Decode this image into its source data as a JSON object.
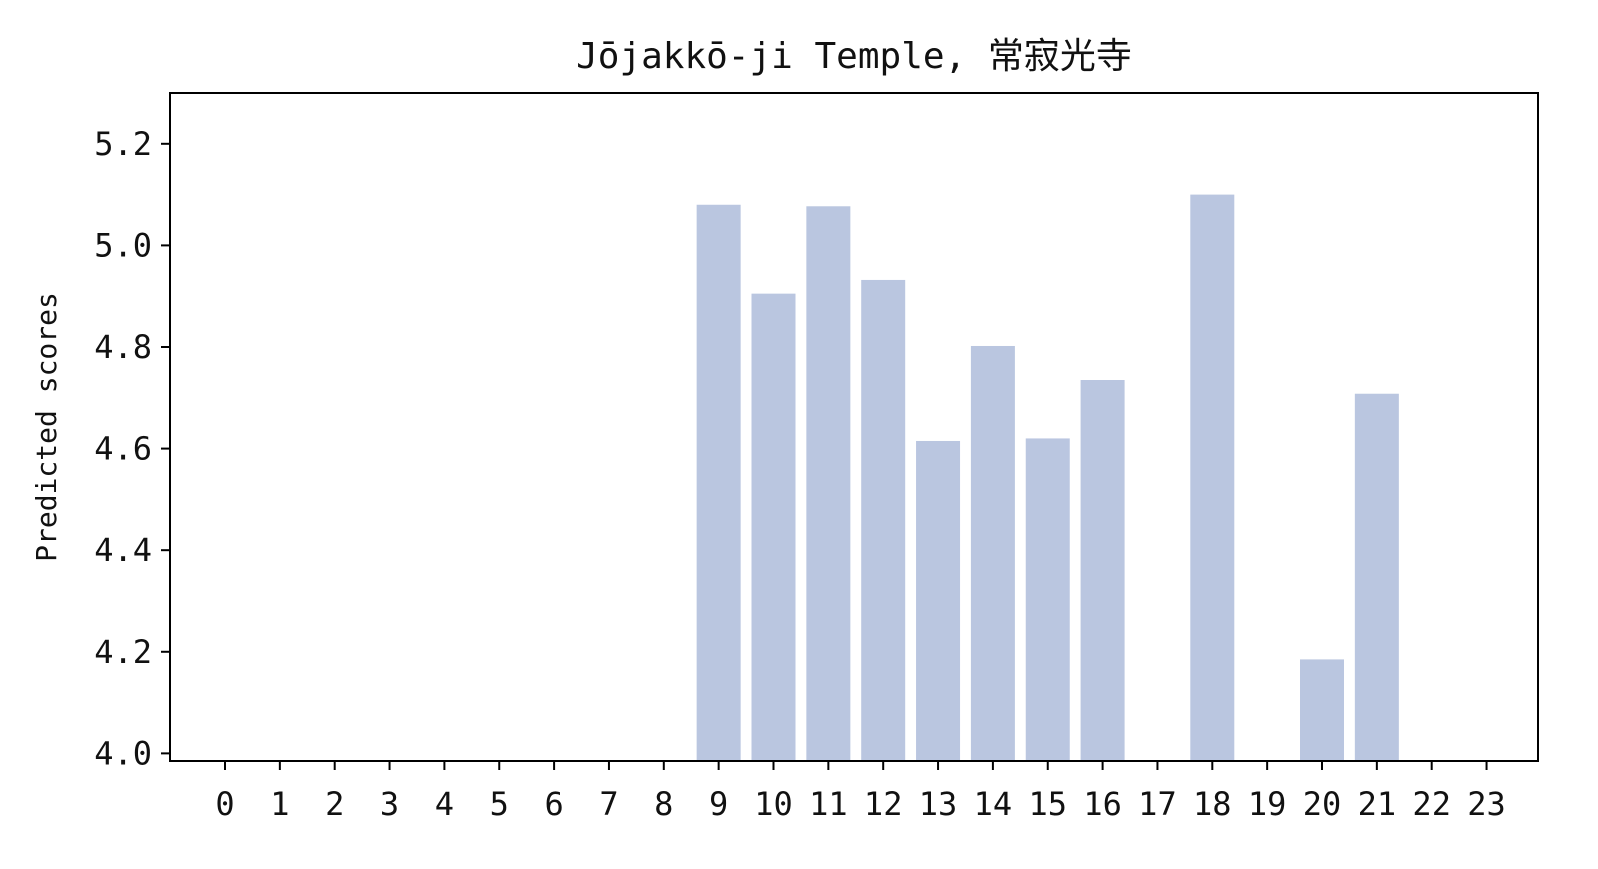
{
  "chart_data": {
    "type": "bar",
    "title": "Jōjakkō-ji Temple, 常寂光寺",
    "xlabel": "",
    "ylabel": "Predicted scores",
    "categories": [
      "0",
      "1",
      "2",
      "3",
      "4",
      "5",
      "6",
      "7",
      "8",
      "9",
      "10",
      "11",
      "12",
      "13",
      "14",
      "15",
      "16",
      "17",
      "18",
      "19",
      "20",
      "21",
      "22",
      "23"
    ],
    "values": [
      null,
      null,
      null,
      null,
      null,
      null,
      null,
      null,
      null,
      5.08,
      4.905,
      5.077,
      4.932,
      4.615,
      4.802,
      4.62,
      4.735,
      null,
      5.1,
      null,
      4.185,
      4.708,
      null,
      null
    ],
    "yticks": [
      "4.0",
      "4.2",
      "4.4",
      "4.6",
      "4.8",
      "5.0",
      "5.2"
    ],
    "ylim": [
      3.985,
      5.3
    ],
    "grid": false,
    "bar_color": "#bac6e0"
  }
}
